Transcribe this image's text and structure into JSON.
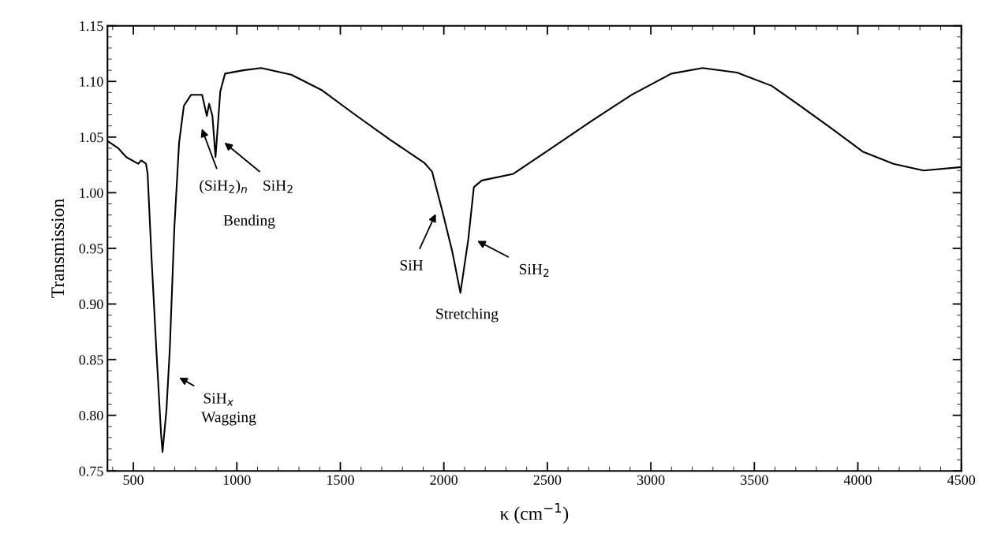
{
  "chart_data": {
    "type": "line",
    "xlabel": "κ (cm$^{−1}$)",
    "ylabel": "Transmission",
    "x": [
      378,
      427,
      466,
      523,
      538,
      561,
      569,
      588,
      611,
      634,
      641,
      660,
      676,
      698,
      721,
      744,
      779,
      832,
      855,
      866,
      882,
      897,
      920,
      943,
      1031,
      1118,
      1263,
      1412,
      1557,
      1737,
      1905,
      1943,
      1992,
      2042,
      2080,
      2118,
      2145,
      2183,
      2336,
      2527,
      2718,
      2908,
      3099,
      3250,
      3416,
      3584,
      3729,
      3878,
      4023,
      4172,
      4317,
      4500
    ],
    "series": [
      {
        "color": "#000000",
        "values": [
          1.046,
          1.04,
          1.032,
          1.026,
          1.029,
          1.026,
          1.017,
          0.941,
          0.859,
          0.783,
          0.767,
          0.805,
          0.859,
          0.968,
          1.045,
          1.078,
          1.088,
          1.088,
          1.069,
          1.08,
          1.069,
          1.032,
          1.091,
          1.107,
          1.11,
          1.112,
          1.106,
          1.092,
          1.072,
          1.048,
          1.027,
          1.019,
          0.984,
          0.946,
          0.91,
          0.958,
          1.005,
          1.011,
          1.017,
          1.041,
          1.065,
          1.088,
          1.107,
          1.112,
          1.108,
          1.096,
          1.077,
          1.057,
          1.037,
          1.026,
          1.02,
          1.023
        ]
      }
    ],
    "xlim": [
      375,
      4500
    ],
    "ylim": [
      0.75,
      1.15
    ],
    "xticks": [
      500,
      1000,
      1500,
      2000,
      2500,
      3000,
      3500,
      4000,
      4500
    ],
    "yticks": [
      {
        "value": 0.75,
        "label": "0.75"
      },
      {
        "value": 0.8,
        "label": "0.80"
      },
      {
        "value": 0.85,
        "label": "0.85"
      },
      {
        "value": 0.9,
        "label": "0.90"
      },
      {
        "value": 0.95,
        "label": "0.95"
      },
      {
        "value": 1.0,
        "label": "1.00"
      },
      {
        "value": 1.05,
        "label": "1.05"
      },
      {
        "value": 1.1,
        "label": "1.10"
      },
      {
        "value": 1.15,
        "label": "1.15"
      }
    ],
    "marker": "none",
    "line_style": "solid",
    "annotations": [
      "SiH$_{x}$",
      "Wagging",
      "(SiH$_{2}$)$_{n}$",
      "SiH$_{2}$",
      "Bending",
      "SiH",
      "SiH$_{2}$",
      "Stretching"
    ]
  }
}
